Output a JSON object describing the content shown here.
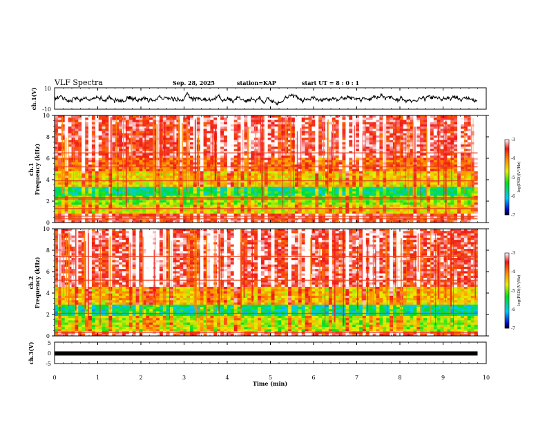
{
  "header": {
    "title": "VLF Spectra",
    "date": "Sep. 28, 2025",
    "station": "station=KAP",
    "start": "start UT =  8 : 0 : 1"
  },
  "chart_data": [
    {
      "type": "line",
      "panel": "ch1-waveform",
      "ylabel": "ch.1(V)",
      "ylim": [
        -10,
        10
      ],
      "yticks": [
        "10",
        "-10"
      ],
      "xlim": [
        0,
        10
      ],
      "note": "noisy waveform roughly between -6 and 5 V over 0-9.8 min"
    },
    {
      "type": "heatmap",
      "panel": "ch1-spectrogram",
      "ylabel_line1": "ch.1",
      "ylabel_line2": "Frequency (kHz)",
      "ylim": [
        0,
        10
      ],
      "yticks": [
        "0",
        "2",
        "4",
        "6",
        "8",
        "10"
      ],
      "xlim": [
        0,
        10
      ],
      "data_end_min": 9.8,
      "colorbar": {
        "label": "log(PSD)(V²/Hz)",
        "range": [
          -7,
          -3
        ],
        "ticks": [
          "-3",
          "-4",
          "-5",
          "-6",
          "-7"
        ]
      },
      "bands_khz": [
        {
          "from": 0.0,
          "to": 0.8,
          "level": -3.6
        },
        {
          "from": 0.8,
          "to": 1.6,
          "level": -4.6
        },
        {
          "from": 1.6,
          "to": 2.4,
          "level": -5.0
        },
        {
          "from": 2.4,
          "to": 3.4,
          "level": -5.6
        },
        {
          "from": 3.4,
          "to": 4.8,
          "level": -4.5
        },
        {
          "from": 4.8,
          "to": 6.0,
          "level": -3.9
        },
        {
          "from": 6.0,
          "to": 10.0,
          "level": -3.4
        }
      ],
      "lines_khz": [
        0.35,
        0.6,
        1.3,
        2.2,
        2.35,
        3.9,
        5.2,
        6.5
      ]
    },
    {
      "type": "heatmap",
      "panel": "ch2-spectrogram",
      "ylabel_line1": "ch.2",
      "ylabel_line2": "Frequency (kHz)",
      "ylim": [
        0,
        10
      ],
      "yticks": [
        "0",
        "2",
        "4",
        "6",
        "8",
        "10"
      ],
      "xlim": [
        0,
        10
      ],
      "data_end_min": 9.8,
      "colorbar": {
        "label": "log(PSD)(V²/Hz)",
        "range": [
          -7,
          -3
        ],
        "ticks": [
          "-3",
          "-4",
          "-5",
          "-6",
          "-7"
        ]
      },
      "bands_khz": [
        {
          "from": 0.0,
          "to": 0.5,
          "level": -3.5
        },
        {
          "from": 0.5,
          "to": 1.8,
          "level": -4.8
        },
        {
          "from": 1.8,
          "to": 3.0,
          "level": -5.7
        },
        {
          "from": 3.0,
          "to": 4.5,
          "level": -4.4
        },
        {
          "from": 4.5,
          "to": 10.0,
          "level": -3.4
        }
      ],
      "lines_khz": [
        0.3,
        2.1,
        5.2,
        7.4
      ]
    },
    {
      "type": "line",
      "panel": "ch3-waveform",
      "ylabel": "ch.3(V)",
      "ylim": [
        -5,
        5
      ],
      "yticks": [
        "5",
        "0",
        "-5"
      ],
      "xlim": [
        0,
        10
      ],
      "level_v": -0.3,
      "note": "flat thick trace near 0 V"
    }
  ],
  "xaxis": {
    "label": "Time (min)",
    "ticks": [
      "0",
      "1",
      "2",
      "3",
      "4",
      "5",
      "6",
      "7",
      "8",
      "9",
      "10"
    ]
  },
  "colors": {
    "axis": "#000000",
    "trace": "#000000"
  }
}
